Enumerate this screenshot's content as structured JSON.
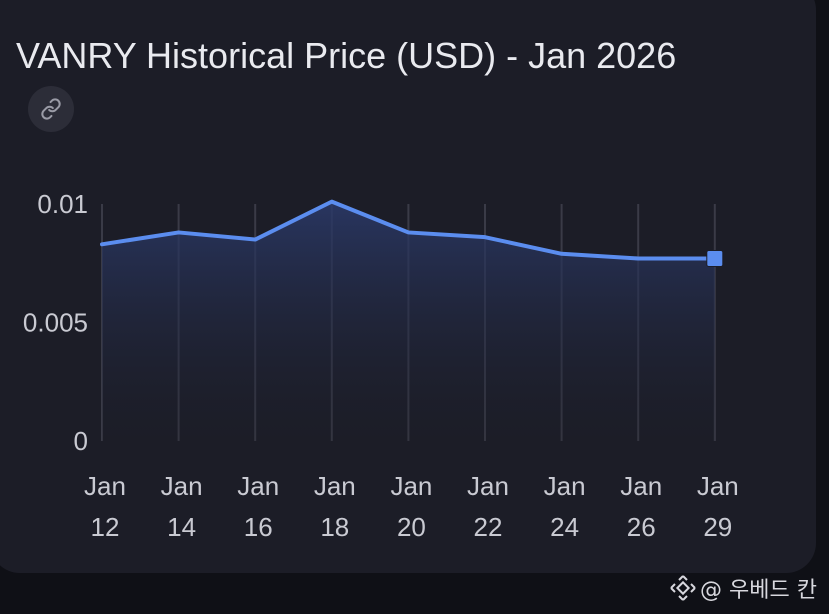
{
  "card": {
    "title": "VANRY Historical Price (USD) - Jan 2026",
    "link_icon": "link-icon"
  },
  "chart_data": {
    "type": "area",
    "title": "VANRY Historical Price (USD) - Jan 2026",
    "xlabel": "",
    "ylabel": "",
    "x_ticks": [
      {
        "line1": "Jan",
        "line2": "12"
      },
      {
        "line1": "Jan",
        "line2": "14"
      },
      {
        "line1": "Jan",
        "line2": "16"
      },
      {
        "line1": "Jan",
        "line2": "18"
      },
      {
        "line1": "Jan",
        "line2": "20"
      },
      {
        "line1": "Jan",
        "line2": "22"
      },
      {
        "line1": "Jan",
        "line2": "24"
      },
      {
        "line1": "Jan",
        "line2": "26"
      },
      {
        "line1": "Jan",
        "line2": "29"
      }
    ],
    "y_ticks": [
      "0.01",
      "0.005",
      "0"
    ],
    "ylim": [
      0,
      0.01
    ],
    "series": [
      {
        "values": [
          0.0083,
          0.0088,
          0.0085,
          0.0101,
          0.0088,
          0.0086,
          0.0079,
          0.0077,
          0.0077
        ]
      }
    ],
    "grid": "vertical",
    "colors": {
      "line": "#5b8def",
      "fill_top": "#2b3a6b",
      "grid": "#3a3b47"
    }
  },
  "watermark": {
    "icon": "binance-icon",
    "text": "@ 우베드 칸"
  }
}
